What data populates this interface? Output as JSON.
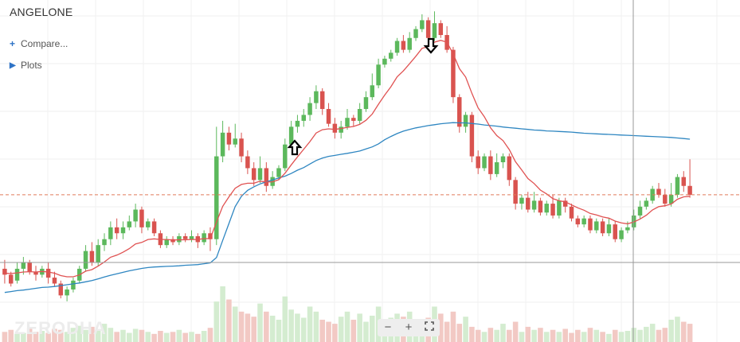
{
  "header": {
    "symbol": "ANGELONE"
  },
  "menu": {
    "compare_icon": "+",
    "compare_label": "Compare...",
    "plots_icon": "▶",
    "plots_label": "Plots"
  },
  "watermark": {
    "text": "ZERODHA"
  },
  "zoom": {
    "zoom_out": "−",
    "zoom_in": "+",
    "fullscreen_icon": "fullscreen-icon"
  },
  "colors": {
    "up": "#5cb85c",
    "down": "#d9534f",
    "ema_short": "#e05252",
    "ema_long": "#2e86c1",
    "price_line": "#e07b5a"
  },
  "chart_data": {
    "type": "candlestick",
    "title": "ANGELONE",
    "ylim": [
      0,
      100
    ],
    "grid": true,
    "current_price": 39,
    "candles": [
      [
        14,
        12,
        9,
        17
      ],
      [
        12,
        9,
        8,
        13
      ],
      [
        10,
        14,
        9,
        16
      ],
      [
        14,
        16,
        12,
        18
      ],
      [
        16,
        13,
        12,
        17
      ],
      [
        13,
        12,
        10,
        15
      ],
      [
        12,
        14,
        11,
        15
      ],
      [
        14,
        11,
        9,
        16
      ],
      [
        11,
        9,
        8,
        13
      ],
      [
        9,
        5,
        4,
        10
      ],
      [
        5,
        7,
        3,
        8
      ],
      [
        7,
        10,
        6,
        11
      ],
      [
        10,
        14,
        9,
        15
      ],
      [
        14,
        20,
        13,
        22
      ],
      [
        20,
        16,
        15,
        23
      ],
      [
        16,
        22,
        15,
        24
      ],
      [
        22,
        24,
        20,
        26
      ],
      [
        24,
        28,
        22,
        30
      ],
      [
        28,
        26,
        24,
        31
      ],
      [
        26,
        28,
        24,
        30
      ],
      [
        28,
        30,
        27,
        32
      ],
      [
        30,
        34,
        28,
        36
      ],
      [
        34,
        28,
        26,
        35
      ],
      [
        28,
        30,
        27,
        31
      ],
      [
        30,
        26,
        25,
        31
      ],
      [
        26,
        22,
        21,
        27
      ],
      [
        22,
        24,
        21,
        25
      ],
      [
        24,
        23,
        22,
        25
      ],
      [
        23,
        25,
        22,
        26
      ],
      [
        25,
        24,
        23,
        26
      ],
      [
        24,
        25,
        23,
        27
      ],
      [
        25,
        23,
        21,
        26
      ],
      [
        23,
        26,
        22,
        27
      ],
      [
        26,
        24,
        20,
        28
      ],
      [
        24,
        52,
        22,
        62
      ],
      [
        52,
        60,
        50,
        64
      ],
      [
        60,
        56,
        54,
        62
      ],
      [
        56,
        58,
        55,
        63
      ],
      [
        58,
        52,
        50,
        60
      ],
      [
        52,
        48,
        46,
        54
      ],
      [
        48,
        44,
        42,
        50
      ],
      [
        44,
        48,
        43,
        52
      ],
      [
        48,
        42,
        40,
        50
      ],
      [
        42,
        45,
        41,
        47
      ],
      [
        45,
        48,
        44,
        49
      ],
      [
        48,
        56,
        47,
        58
      ],
      [
        56,
        62,
        55,
        64
      ],
      [
        62,
        64,
        60,
        66
      ],
      [
        64,
        66,
        62,
        68
      ],
      [
        66,
        70,
        64,
        72
      ],
      [
        70,
        74,
        68,
        76
      ],
      [
        74,
        68,
        66,
        75
      ],
      [
        68,
        63,
        62,
        70
      ],
      [
        63,
        60,
        58,
        65
      ],
      [
        60,
        62,
        58,
        64
      ],
      [
        62,
        65,
        61,
        68
      ],
      [
        65,
        64,
        62,
        66
      ],
      [
        64,
        68,
        63,
        70
      ],
      [
        68,
        72,
        67,
        74
      ],
      [
        72,
        76,
        71,
        80
      ],
      [
        76,
        83,
        75,
        85
      ],
      [
        83,
        85,
        82,
        86
      ],
      [
        85,
        87,
        84,
        88
      ],
      [
        87,
        91,
        86,
        92
      ],
      [
        91,
        88,
        87,
        93
      ],
      [
        88,
        92,
        87,
        94
      ],
      [
        92,
        95,
        91,
        96
      ],
      [
        95,
        98,
        94,
        100
      ],
      [
        98,
        92,
        90,
        99
      ],
      [
        92,
        97,
        91,
        101
      ],
      [
        97,
        93,
        92,
        98
      ],
      [
        93,
        88,
        87,
        96
      ],
      [
        88,
        72,
        70,
        89
      ],
      [
        72,
        62,
        60,
        73
      ],
      [
        62,
        66,
        60,
        67
      ],
      [
        66,
        52,
        50,
        67
      ],
      [
        52,
        48,
        46,
        54
      ],
      [
        48,
        52,
        47,
        53
      ],
      [
        52,
        46,
        44,
        54
      ],
      [
        46,
        50,
        45,
        53
      ],
      [
        50,
        52,
        48,
        53
      ],
      [
        52,
        44,
        42,
        53
      ],
      [
        44,
        36,
        34,
        45
      ],
      [
        36,
        38,
        34,
        39
      ],
      [
        38,
        34,
        33,
        40
      ],
      [
        34,
        37,
        33,
        40
      ],
      [
        37,
        33,
        32,
        38
      ],
      [
        33,
        36,
        32,
        37
      ],
      [
        36,
        32,
        31,
        39
      ],
      [
        32,
        37,
        31,
        38
      ],
      [
        37,
        35,
        33,
        38
      ],
      [
        35,
        31,
        30,
        36
      ],
      [
        31,
        29,
        28,
        32
      ],
      [
        29,
        31,
        28,
        32
      ],
      [
        31,
        27,
        26,
        32
      ],
      [
        27,
        30,
        26,
        31
      ],
      [
        30,
        26,
        25,
        31
      ],
      [
        26,
        29,
        25,
        31
      ],
      [
        29,
        24,
        23,
        30
      ],
      [
        24,
        27,
        23,
        28
      ],
      [
        27,
        28,
        26,
        30
      ],
      [
        28,
        32,
        27,
        34
      ],
      [
        32,
        35,
        31,
        37
      ],
      [
        35,
        37,
        34,
        38
      ],
      [
        37,
        41,
        36,
        42
      ],
      [
        41,
        39,
        38,
        43
      ],
      [
        39,
        36,
        35,
        41
      ],
      [
        36,
        39,
        35,
        43
      ],
      [
        39,
        45,
        38,
        46
      ],
      [
        45,
        42,
        40,
        47
      ],
      [
        42,
        39,
        38,
        51
      ]
    ],
    "ema_short": [
      12.5,
      12.4,
      12.6,
      12.9,
      13,
      12.9,
      13.1,
      12.9,
      12.5,
      11.7,
      11.3,
      11.3,
      11.9,
      13.2,
      13.7,
      14.9,
      16.3,
      17.9,
      18.6,
      19.6,
      20.8,
      22.4,
      22.9,
      23.9,
      24.1,
      23.9,
      23.9,
      23.7,
      23.8,
      23.8,
      23.9,
      23.9,
      24.2,
      24.2,
      29.8,
      35.1,
      38.3,
      41.2,
      42.5,
      42.9,
      42.9,
      43.6,
      43.3,
      43.4,
      44.1,
      46.3,
      49.1,
      51.8,
      54.4,
      57,
      59.9,
      61,
      61.3,
      61.1,
      61.4,
      61.8,
      62.1,
      62.8,
      64.2,
      66.3,
      69.6,
      72.7,
      75.5,
      78.9,
      80.9,
      83.3,
      85.8,
      88.5,
      89.1,
      90.6,
      91.2,
      90.6,
      86.6,
      81.6,
      78.8,
      73.3,
      68.4,
      65.4,
      61.6,
      59,
      57.3,
      54.3,
      50.2,
      47.4,
      44.5,
      42.8,
      40.6,
      39.3,
      37.7,
      37,
      36.6,
      35.6,
      34.6,
      33.8,
      32.7,
      32.2,
      31.5,
      31.1,
      30.1,
      29.5,
      29.2,
      29.8,
      30.8,
      32.1,
      33.9,
      35,
      35.3,
      35.9,
      37.5,
      38.3,
      38.5
    ],
    "ema_long": [
      6,
      6.3,
      6.6,
      6.8,
      7.1,
      7.4,
      7.7,
      7.8,
      8,
      8.3,
      8.6,
      8.9,
      9.2,
      9.6,
      10,
      10.6,
      11.2,
      11.8,
      12.3,
      12.8,
      13.3,
      13.7,
      14.1,
      14.4,
      14.6,
      14.7,
      14.8,
      14.9,
      15,
      15.2,
      15.3,
      15.4,
      15.7,
      16,
      17.8,
      23.6,
      29.3,
      35,
      38.5,
      40.5,
      41.7,
      42.7,
      43.4,
      44,
      44.7,
      45.3,
      46.2,
      47.3,
      48.2,
      49.4,
      50.6,
      51.4,
      52,
      52.3,
      52.7,
      53,
      53.4,
      53.8,
      54.5,
      55.2,
      56.2,
      57.6,
      58.7,
      59.7,
      60.5,
      61.1,
      61.6,
      62,
      62.4,
      62.7,
      63,
      63.2,
      63.4,
      63.3,
      63.3,
      63.1,
      62.9,
      62.6,
      62.4,
      62.2,
      61.9,
      61.7,
      61.5,
      61.3,
      61.1,
      60.9,
      60.8,
      60.6,
      60.5,
      60.4,
      60.3,
      60.2,
      60,
      59.8,
      59.7,
      59.6,
      59.5,
      59.4,
      59.3,
      59.2,
      59.1,
      59,
      58.9,
      58.8,
      58.7,
      58.6,
      58.5,
      58.4,
      58.2,
      58,
      57.8
    ],
    "volume": [
      10,
      12,
      8,
      9,
      14,
      10,
      11,
      9,
      13,
      12,
      10,
      14,
      16,
      12,
      15,
      11,
      18,
      14,
      10,
      12,
      9,
      13,
      12,
      10,
      8,
      11,
      9,
      10,
      12,
      9,
      10,
      8,
      11,
      14,
      40,
      55,
      42,
      35,
      30,
      28,
      25,
      38,
      30,
      26,
      22,
      45,
      32,
      28,
      24,
      35,
      30,
      22,
      20,
      18,
      25,
      30,
      22,
      28,
      20,
      26,
      35,
      22,
      24,
      28,
      25,
      30,
      22,
      20,
      24,
      35,
      28,
      20,
      30,
      18,
      25,
      15,
      12,
      10,
      14,
      12,
      18,
      12,
      20,
      10,
      15,
      12,
      14,
      10,
      12,
      10,
      13,
      9,
      12,
      10,
      14,
      12,
      10,
      8,
      12,
      10,
      11,
      14,
      12,
      15,
      18,
      12,
      14,
      22,
      25,
      20,
      18
    ]
  }
}
